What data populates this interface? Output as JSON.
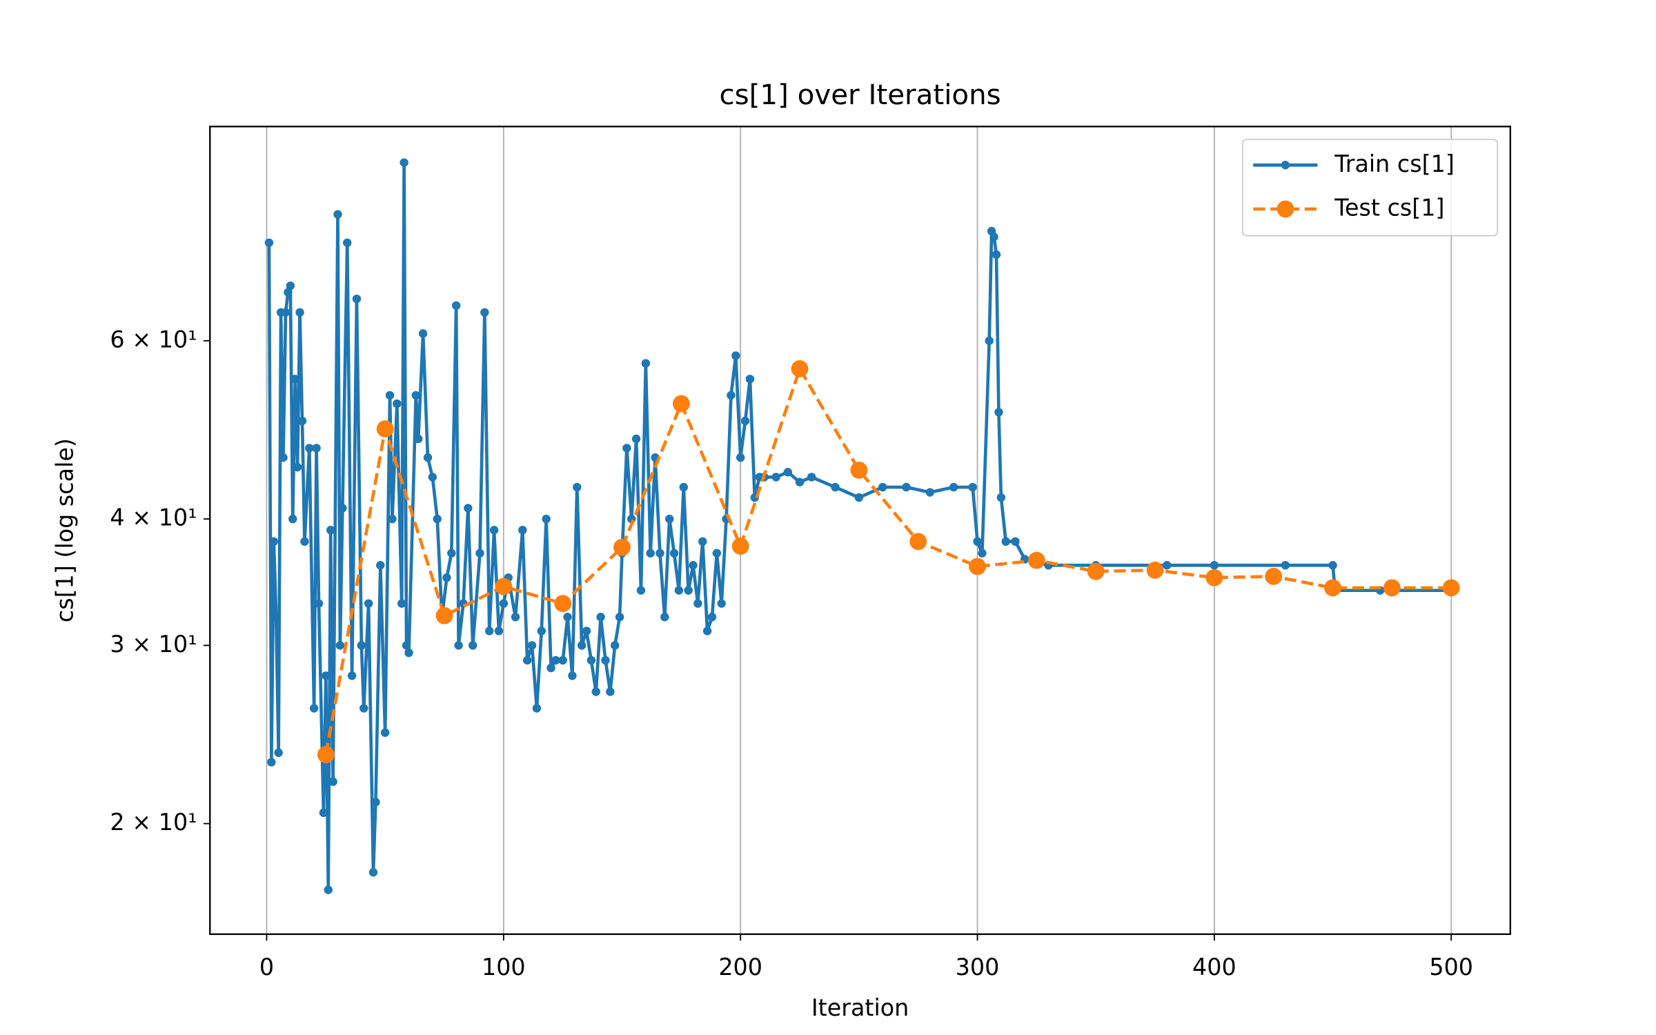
{
  "chart_data": {
    "type": "line",
    "title": "cs[1] over Iterations",
    "xlabel": "Iteration",
    "ylabel": "cs[1] (log scale)",
    "yscale": "log",
    "xlim": [
      -23.95,
      524.95
    ],
    "ylim": [
      15.55,
      97.7
    ],
    "xticks": [
      0,
      100,
      200,
      300,
      400,
      500
    ],
    "yticks": [
      {
        "value": 20,
        "label": "2 × 10¹"
      },
      {
        "value": 30,
        "label": "3 × 10¹"
      },
      {
        "value": 40,
        "label": "4 × 10¹"
      },
      {
        "value": 60,
        "label": "6 × 10¹"
      }
    ],
    "grid": "x",
    "legend": "upper right",
    "series": [
      {
        "name": "Train cs[1]",
        "color": "#1f77b4",
        "style": "solid",
        "marker_size": 4,
        "x": [
          1,
          2,
          3,
          4,
          5,
          6,
          7,
          8,
          9,
          10,
          11,
          12,
          13,
          14,
          15,
          16,
          18,
          20,
          21,
          22,
          24,
          25,
          26,
          27,
          28,
          30,
          31,
          32,
          34,
          36,
          38,
          40,
          41,
          43,
          45,
          46,
          48,
          50,
          52,
          53,
          55,
          57,
          58,
          59,
          60,
          63,
          64,
          66,
          68,
          70,
          72,
          74,
          76,
          78,
          80,
          81,
          83,
          85,
          87,
          90,
          92,
          94,
          96,
          98,
          100,
          102,
          105,
          108,
          110,
          112,
          114,
          116,
          118,
          120,
          122,
          125,
          127,
          129,
          131,
          133,
          135,
          137,
          139,
          141,
          143,
          145,
          147,
          149,
          150,
          152,
          154,
          156,
          158,
          160,
          162,
          164,
          166,
          168,
          170,
          172,
          174,
          176,
          178,
          180,
          182,
          184,
          186,
          188,
          190,
          192,
          194,
          196,
          198,
          200,
          202,
          204,
          206,
          208,
          210,
          215,
          220,
          225,
          230,
          240,
          250,
          260,
          270,
          280,
          290,
          298,
          300,
          302,
          305,
          306,
          307,
          308,
          309,
          310,
          312,
          316,
          320,
          330,
          350,
          380,
          400,
          430,
          450,
          451,
          470,
          500
        ],
        "values": [
          75,
          23,
          38,
          32,
          23.5,
          64,
          46,
          64,
          67,
          68,
          40,
          55,
          45,
          64,
          50,
          38,
          47,
          26,
          47,
          33,
          20.5,
          28,
          17.2,
          39,
          22,
          80,
          30,
          41,
          75,
          28,
          66,
          30,
          26,
          33,
          17.9,
          21,
          36,
          24.6,
          53,
          40,
          52,
          33,
          90,
          30,
          29.5,
          53,
          48,
          61,
          46,
          44,
          40,
          32,
          35,
          37,
          65,
          30,
          33,
          41,
          30,
          37,
          64,
          31,
          39,
          31,
          33,
          35,
          32,
          39,
          29,
          30,
          26,
          31,
          40,
          28.5,
          29,
          29,
          32,
          28,
          43,
          30,
          31,
          29,
          27,
          32,
          29,
          27,
          30,
          32,
          37,
          47,
          40,
          48,
          34,
          57,
          37,
          46,
          37,
          32,
          40,
          37,
          34,
          43,
          34,
          36,
          33,
          38,
          31,
          32,
          37,
          33,
          40,
          53,
          58,
          46,
          50,
          55,
          42,
          44,
          44,
          44,
          44.5,
          43.5,
          44,
          43,
          42,
          43,
          43,
          42.5,
          43,
          43,
          38,
          37,
          60,
          77,
          76,
          73,
          51,
          42,
          38,
          38,
          36.5,
          36,
          36,
          36,
          36,
          36,
          36,
          34,
          34,
          34
        ]
      },
      {
        "name": "Test cs[1]",
        "color": "#ff7f0e",
        "style": "dashed",
        "marker_size": 8,
        "x": [
          25,
          50,
          75,
          100,
          125,
          150,
          175,
          200,
          225,
          250,
          275,
          300,
          325,
          350,
          375,
          400,
          425,
          450,
          475,
          500
        ],
        "values": [
          23.4,
          49.1,
          32.1,
          34.3,
          33.0,
          37.5,
          52.0,
          37.6,
          56.3,
          44.7,
          38.0,
          35.9,
          36.4,
          35.5,
          35.6,
          35.0,
          35.1,
          34.2,
          34.2,
          34.2
        ]
      }
    ]
  }
}
